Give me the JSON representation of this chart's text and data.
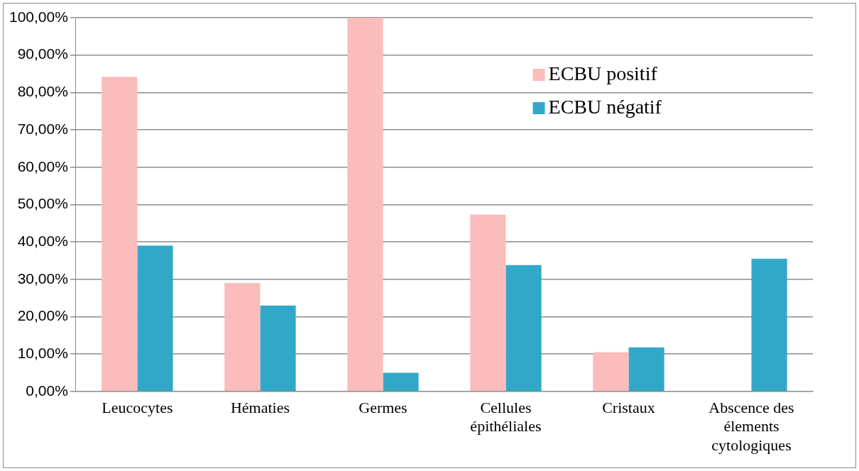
{
  "chart_data": {
    "type": "bar",
    "categories": [
      "Leucocytes",
      "Hématies",
      "Germes",
      "Cellules épithéliales",
      "Cristaux",
      "Abscence des élements cytologiques"
    ],
    "series": [
      {
        "name": "ECBU positif",
        "color": "#fbbcbc",
        "values": [
          84.2,
          29,
          100,
          47.3,
          10.5,
          0
        ]
      },
      {
        "name": "ECBU négatif",
        "color": "#32a8c8",
        "values": [
          39,
          23,
          5,
          33.8,
          11.8,
          35.5
        ]
      }
    ],
    "ylim": [
      0,
      100
    ],
    "yticks": [
      {
        "value": 0,
        "label": "0,00%"
      },
      {
        "value": 10,
        "label": "10,00%"
      },
      {
        "value": 20,
        "label": "20,00%"
      },
      {
        "value": 30,
        "label": "30,00%"
      },
      {
        "value": 40,
        "label": "40,00%"
      },
      {
        "value": 50,
        "label": "50,00%"
      },
      {
        "value": 60,
        "label": "60,00%"
      },
      {
        "value": 70,
        "label": "70,00%"
      },
      {
        "value": 80,
        "label": "80,00%"
      },
      {
        "value": 90,
        "label": "90,00%"
      },
      {
        "value": 100,
        "label": "100,00%"
      }
    ],
    "grid": "y",
    "legend": "top right"
  }
}
